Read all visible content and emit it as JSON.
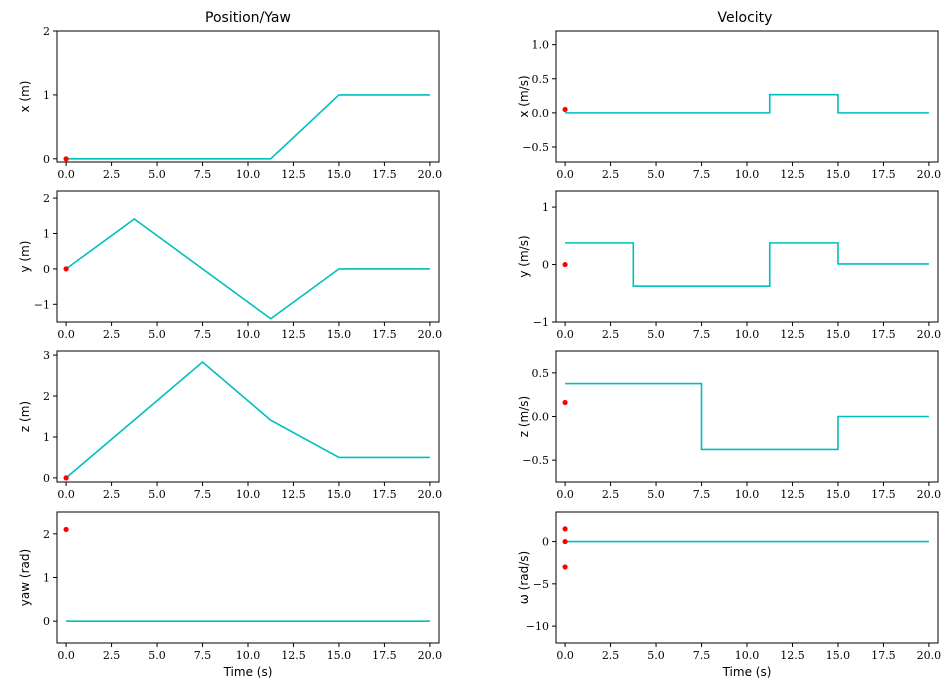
{
  "columns": {
    "left_title": "Position/Yaw",
    "right_title": "Velocity"
  },
  "colors": {
    "line": "#00bfbf",
    "marker": "#ff0000"
  },
  "chart_data": [
    {
      "type": "line",
      "ylabel": "x (m)",
      "xlabel": "",
      "xlim": [
        -0.5,
        20.5
      ],
      "ylim": [
        -0.05,
        2
      ],
      "xticks": [
        0,
        2.5,
        5,
        7.5,
        10,
        12.5,
        15,
        17.5,
        20
      ],
      "xtick_labels": [
        "0.0",
        "2.5",
        "5.0",
        "7.5",
        "10.0",
        "12.5",
        "15.0",
        "17.5",
        "20.0"
      ],
      "yticks": [
        0,
        1,
        2
      ],
      "ytick_labels": [
        "0",
        "1",
        "2"
      ],
      "series": [
        {
          "x": [
            0,
            11.25,
            15,
            20
          ],
          "y": [
            0,
            0,
            1,
            1
          ]
        }
      ],
      "markers": [
        {
          "x": 0,
          "y": 0
        }
      ]
    },
    {
      "type": "line",
      "ylabel": "x (m/s)",
      "xlabel": "",
      "xlim": [
        -0.5,
        20.5
      ],
      "ylim": [
        -0.72,
        1.2
      ],
      "xticks": [
        0,
        2.5,
        5,
        7.5,
        10,
        12.5,
        15,
        17.5,
        20
      ],
      "xtick_labels": [
        "0.0",
        "2.5",
        "5.0",
        "7.5",
        "10.0",
        "12.5",
        "15.0",
        "17.5",
        "20.0"
      ],
      "yticks": [
        -0.5,
        0,
        0.5,
        1
      ],
      "ytick_labels": [
        "−0.5",
        "0.0",
        "0.5",
        "1.0"
      ],
      "series": [
        {
          "x": [
            0,
            11.25,
            11.25,
            15,
            15,
            20
          ],
          "y": [
            0,
            0,
            0.267,
            0.267,
            0,
            0
          ]
        }
      ],
      "markers": [
        {
          "x": 0,
          "y": 0.05
        }
      ]
    },
    {
      "type": "line",
      "ylabel": "y (m)",
      "xlabel": "",
      "xlim": [
        -0.5,
        20.5
      ],
      "ylim": [
        -1.5,
        2.2
      ],
      "xticks": [
        0,
        2.5,
        5,
        7.5,
        10,
        12.5,
        15,
        17.5,
        20
      ],
      "xtick_labels": [
        "0.0",
        "2.5",
        "5.0",
        "7.5",
        "10.0",
        "12.5",
        "15.0",
        "17.5",
        "20.0"
      ],
      "yticks": [
        -1,
        0,
        1,
        2
      ],
      "ytick_labels": [
        "−1",
        "0",
        "1",
        "2"
      ],
      "series": [
        {
          "x": [
            0,
            3.75,
            11.25,
            15,
            20
          ],
          "y": [
            0,
            1.41,
            -1.41,
            0,
            0
          ]
        }
      ],
      "markers": [
        {
          "x": 0,
          "y": 0
        }
      ]
    },
    {
      "type": "line",
      "ylabel": "y (m/s)",
      "xlabel": "",
      "xlim": [
        -0.5,
        20.5
      ],
      "ylim": [
        -1,
        1.28
      ],
      "xticks": [
        0,
        2.5,
        5,
        7.5,
        10,
        12.5,
        15,
        17.5,
        20
      ],
      "xtick_labels": [
        "0.0",
        "2.5",
        "5.0",
        "7.5",
        "10.0",
        "12.5",
        "15.0",
        "17.5",
        "20.0"
      ],
      "yticks": [
        -1,
        0,
        1
      ],
      "ytick_labels": [
        "−1",
        "0",
        "1"
      ],
      "series": [
        {
          "x": [
            0,
            3.75,
            3.75,
            11.25,
            11.25,
            15,
            15,
            20
          ],
          "y": [
            0.377,
            0.377,
            -0.377,
            -0.377,
            0.377,
            0.377,
            0.01,
            0.01
          ]
        }
      ],
      "markers": [
        {
          "x": 0,
          "y": 0
        }
      ]
    },
    {
      "type": "line",
      "ylabel": "z (m)",
      "xlabel": "",
      "xlim": [
        -0.5,
        20.5
      ],
      "ylim": [
        -0.1,
        3.1
      ],
      "xticks": [
        0,
        2.5,
        5,
        7.5,
        10,
        12.5,
        15,
        17.5,
        20
      ],
      "xtick_labels": [
        "0.0",
        "2.5",
        "5.0",
        "7.5",
        "10.0",
        "12.5",
        "15.0",
        "17.5",
        "20.0"
      ],
      "yticks": [
        0,
        1,
        2,
        3
      ],
      "ytick_labels": [
        "0",
        "1",
        "2",
        "3"
      ],
      "series": [
        {
          "x": [
            0,
            7.5,
            11.25,
            15,
            20
          ],
          "y": [
            0,
            2.83,
            1.41,
            0.5,
            0.5
          ]
        }
      ],
      "markers": [
        {
          "x": 0,
          "y": 0
        }
      ]
    },
    {
      "type": "line",
      "ylabel": "z (m/s)",
      "xlabel": "",
      "xlim": [
        -0.5,
        20.5
      ],
      "ylim": [
        -0.75,
        0.75
      ],
      "xticks": [
        0,
        2.5,
        5,
        7.5,
        10,
        12.5,
        15,
        17.5,
        20
      ],
      "xtick_labels": [
        "0.0",
        "2.5",
        "5.0",
        "7.5",
        "10.0",
        "12.5",
        "15.0",
        "17.5",
        "20.0"
      ],
      "yticks": [
        -0.5,
        0,
        0.5
      ],
      "ytick_labels": [
        "−0.5",
        "0.0",
        "0.5"
      ],
      "series": [
        {
          "x": [
            0,
            7.5,
            7.5,
            15,
            15,
            20
          ],
          "y": [
            0.377,
            0.377,
            -0.377,
            -0.377,
            0,
            0
          ]
        }
      ],
      "markers": [
        {
          "x": 0,
          "y": 0.16
        }
      ]
    },
    {
      "type": "line",
      "ylabel": "yaw (rad)",
      "xlabel": "Time (s)",
      "xlim": [
        -0.5,
        20.5
      ],
      "ylim": [
        -0.5,
        2.5
      ],
      "xticks": [
        0,
        2.5,
        5,
        7.5,
        10,
        12.5,
        15,
        17.5,
        20
      ],
      "xtick_labels": [
        "0.0",
        "2.5",
        "5.0",
        "7.5",
        "10.0",
        "12.5",
        "15.0",
        "17.5",
        "20.0"
      ],
      "yticks": [
        0,
        1,
        2
      ],
      "ytick_labels": [
        "0",
        "1",
        "2"
      ],
      "series": [
        {
          "x": [
            0,
            20
          ],
          "y": [
            0,
            0
          ]
        }
      ],
      "markers": [
        {
          "x": 0,
          "y": 2.1
        }
      ]
    },
    {
      "type": "line",
      "ylabel": "ω (rad/s)",
      "xlabel": "Time (s)",
      "xlim": [
        -0.5,
        20.5
      ],
      "ylim": [
        -12,
        3.5
      ],
      "xticks": [
        0,
        2.5,
        5,
        7.5,
        10,
        12.5,
        15,
        17.5,
        20
      ],
      "xtick_labels": [
        "0.0",
        "2.5",
        "5.0",
        "7.5",
        "10.0",
        "12.5",
        "15.0",
        "17.5",
        "20.0"
      ],
      "yticks": [
        -10,
        -5,
        0
      ],
      "ytick_labels": [
        "−10",
        "−5",
        "0"
      ],
      "series": [
        {
          "x": [
            0,
            20
          ],
          "y": [
            0,
            0
          ]
        }
      ],
      "markers": [
        {
          "x": 0,
          "y": 1.5
        },
        {
          "x": 0,
          "y": 0
        },
        {
          "x": 0,
          "y": -3.0
        }
      ]
    }
  ]
}
